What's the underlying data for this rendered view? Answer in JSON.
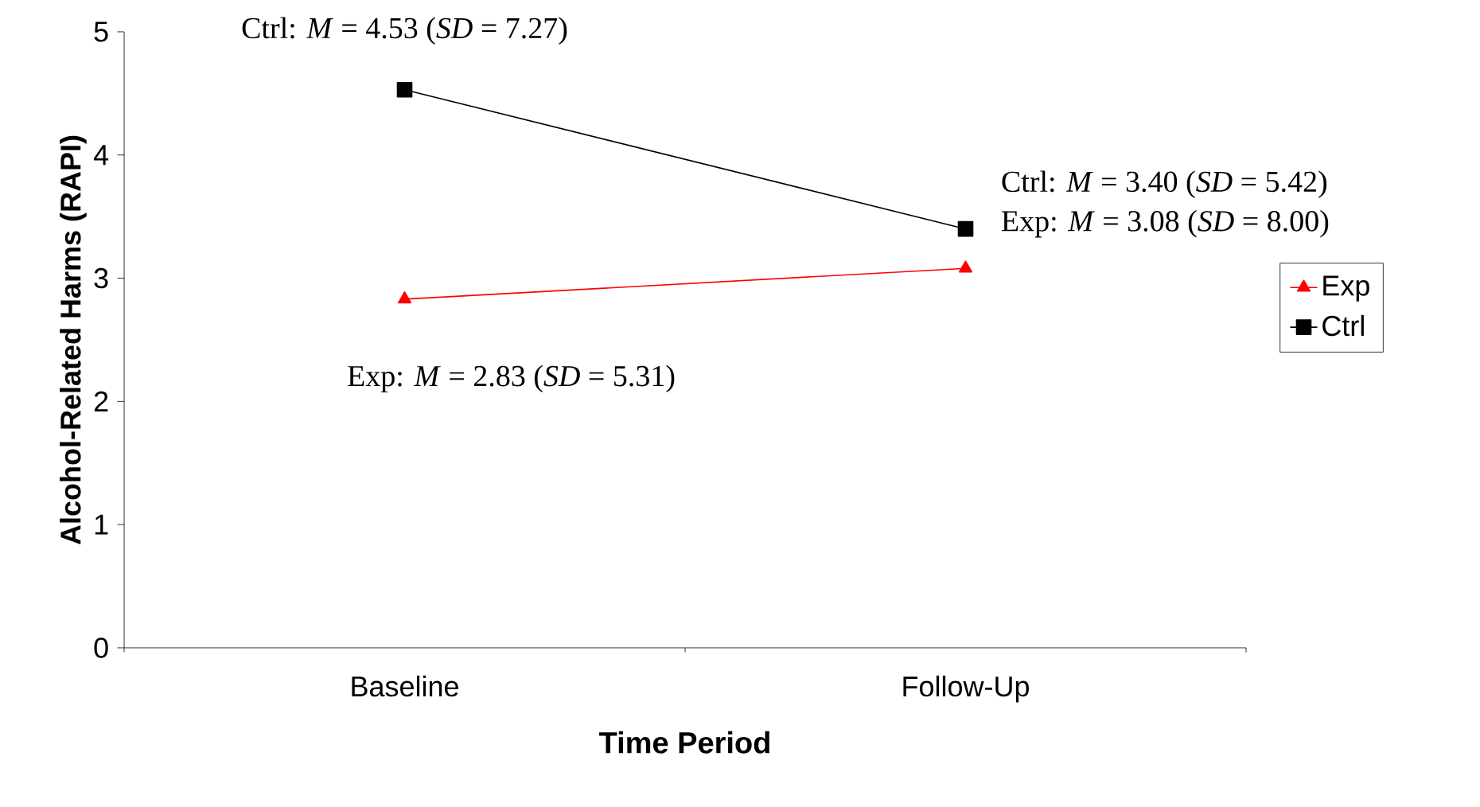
{
  "chart_data": {
    "type": "line",
    "xlabel": "Time Period",
    "ylabel": "Alcohol-Related Harms (RAPI)",
    "categories": [
      "Baseline",
      "Follow-Up"
    ],
    "series": [
      {
        "name": "Exp",
        "color": "#ff0000",
        "marker": "triangle",
        "values": [
          2.83,
          3.08
        ]
      },
      {
        "name": "Ctrl",
        "color": "#000000",
        "marker": "square",
        "values": [
          4.53,
          3.4
        ]
      }
    ],
    "ylim": [
      0,
      5
    ],
    "yticks": [
      0,
      1,
      2,
      3,
      4,
      5
    ],
    "legend": "right",
    "annotations": [
      {
        "text": "Ctrl:  *M* = 4.53 (*SD* = 7.27)",
        "x": "Baseline",
        "y": 4.53
      },
      {
        "text": "Exp:  *M* = 2.83 (*SD* = 5.31)",
        "x": "Baseline",
        "y": 2.83
      },
      {
        "text": "Ctrl:  *M* = 3.40 (*SD* = 5.42)",
        "x": "Follow-Up",
        "y": 3.4
      },
      {
        "text": "Exp: *M* = 3.08 (*SD* = 8.00)",
        "x": "Follow-Up",
        "y": 3.08
      }
    ]
  }
}
